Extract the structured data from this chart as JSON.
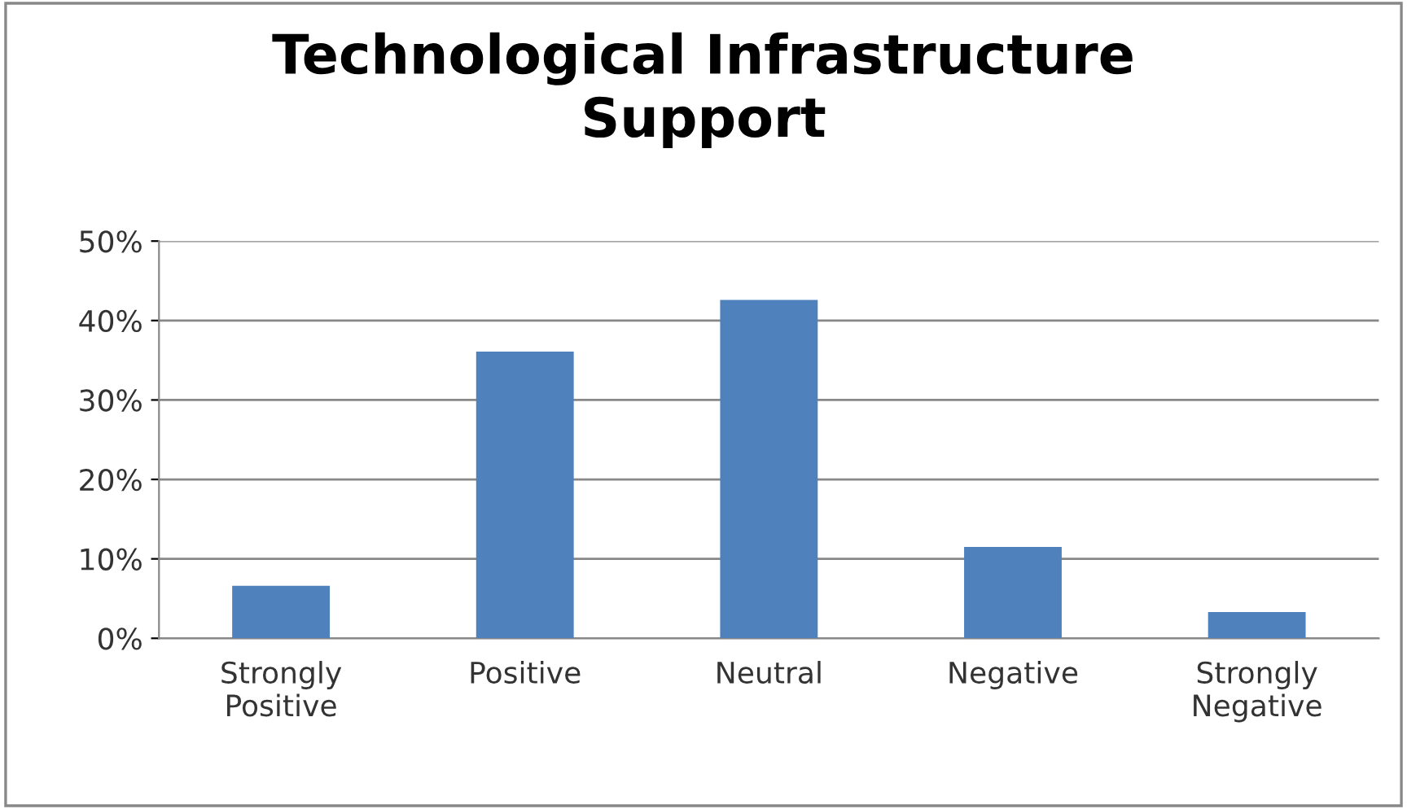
{
  "chart_data": {
    "type": "bar",
    "title": "Technological Infrastructure\nSupport",
    "categories": [
      "Strongly Positive",
      "Positive",
      "Neutral",
      "Negative",
      "Strongly Negative"
    ],
    "values": [
      6.6,
      36.1,
      42.6,
      11.5,
      3.3
    ],
    "color": "#4f81bd",
    "ylim": [
      0,
      50
    ],
    "yticks": [
      {
        "value": 0,
        "label": "0%"
      },
      {
        "value": 10,
        "label": "10%"
      },
      {
        "value": 20,
        "label": "20%"
      },
      {
        "value": 30,
        "label": "30%"
      },
      {
        "value": 40,
        "label": "40%"
      },
      {
        "value": 50,
        "label": "50%"
      }
    ],
    "grid": "y",
    "legend": false
  }
}
